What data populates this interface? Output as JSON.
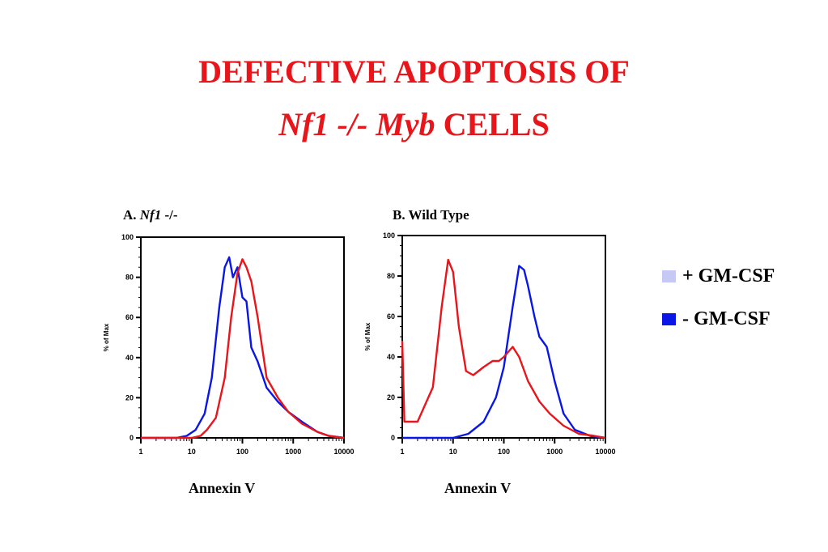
{
  "title": {
    "line1": "DEFECTIVE APOPTOSIS OF",
    "line2_a": "Nf1 -/- ",
    "line2_b": "Myb",
    "line2_c": " CELLS"
  },
  "legend": {
    "items": [
      {
        "label": "+ GM-CSF",
        "color": "#c5c9f3"
      },
      {
        "label": "- GM-CSF",
        "color": "#0a16e6"
      }
    ]
  },
  "chart_data": [
    {
      "type": "line",
      "panel_label_prefix": "A.",
      "panel_label_italic": "Nf1",
      "panel_label_suffix": "-/-",
      "xlabel": "Annexin V",
      "ylabel": "% of Max",
      "xscale": "log",
      "xlim": [
        1,
        10000
      ],
      "ylim": [
        0,
        100
      ],
      "xticks": [
        "1",
        "10",
        "100",
        "1000",
        "10000"
      ],
      "yticks": [
        "0",
        "20",
        "40",
        "60",
        "80",
        "100"
      ],
      "series": [
        {
          "color": "#0a16e6",
          "x": [
            1,
            3,
            5,
            8,
            12,
            18,
            25,
            35,
            45,
            55,
            65,
            80,
            100,
            120,
            150,
            200,
            300,
            500,
            800,
            1500,
            3000,
            5000,
            10000
          ],
          "y": [
            0,
            0,
            0,
            1,
            4,
            12,
            30,
            65,
            85,
            90,
            80,
            85,
            70,
            68,
            45,
            38,
            25,
            18,
            13,
            8,
            3,
            1,
            0
          ]
        },
        {
          "color": "#e8151b",
          "x": [
            1,
            5,
            10,
            15,
            20,
            30,
            45,
            60,
            80,
            100,
            120,
            150,
            200,
            300,
            500,
            800,
            1500,
            3000,
            5000,
            10000
          ],
          "y": [
            0,
            0,
            0,
            1,
            4,
            10,
            30,
            60,
            82,
            89,
            85,
            78,
            60,
            30,
            20,
            13,
            7,
            3,
            1,
            0
          ]
        }
      ]
    },
    {
      "type": "line",
      "panel_label_prefix": "B.",
      "panel_label_italic": "",
      "panel_label_suffix": "Wild Type",
      "xlabel": "Annexin V",
      "ylabel": "% of Max",
      "xscale": "log",
      "xlim": [
        1,
        10000
      ],
      "ylim": [
        0,
        100
      ],
      "xticks": [
        "1",
        "10",
        "100",
        "1000",
        "10000"
      ],
      "yticks": [
        "0",
        "20",
        "40",
        "60",
        "80",
        "100"
      ],
      "series": [
        {
          "color": "#0a16e6",
          "x": [
            1,
            5,
            10,
            20,
            40,
            70,
            100,
            150,
            200,
            250,
            300,
            400,
            500,
            700,
            1000,
            1500,
            2500,
            5000,
            10000
          ],
          "y": [
            0,
            0,
            0,
            2,
            8,
            20,
            35,
            65,
            85,
            83,
            75,
            60,
            50,
            45,
            28,
            12,
            4,
            1,
            0
          ]
        },
        {
          "color": "#e8151b",
          "x": [
            1,
            1.1,
            2,
            4,
            6,
            8,
            10,
            13,
            18,
            25,
            40,
            60,
            80,
            100,
            150,
            200,
            300,
            500,
            800,
            1500,
            3000,
            6000,
            10000
          ],
          "y": [
            48,
            8,
            8,
            25,
            65,
            88,
            82,
            55,
            33,
            31,
            35,
            38,
            38,
            40,
            45,
            40,
            28,
            18,
            12,
            6,
            2,
            1,
            0
          ]
        }
      ]
    }
  ]
}
